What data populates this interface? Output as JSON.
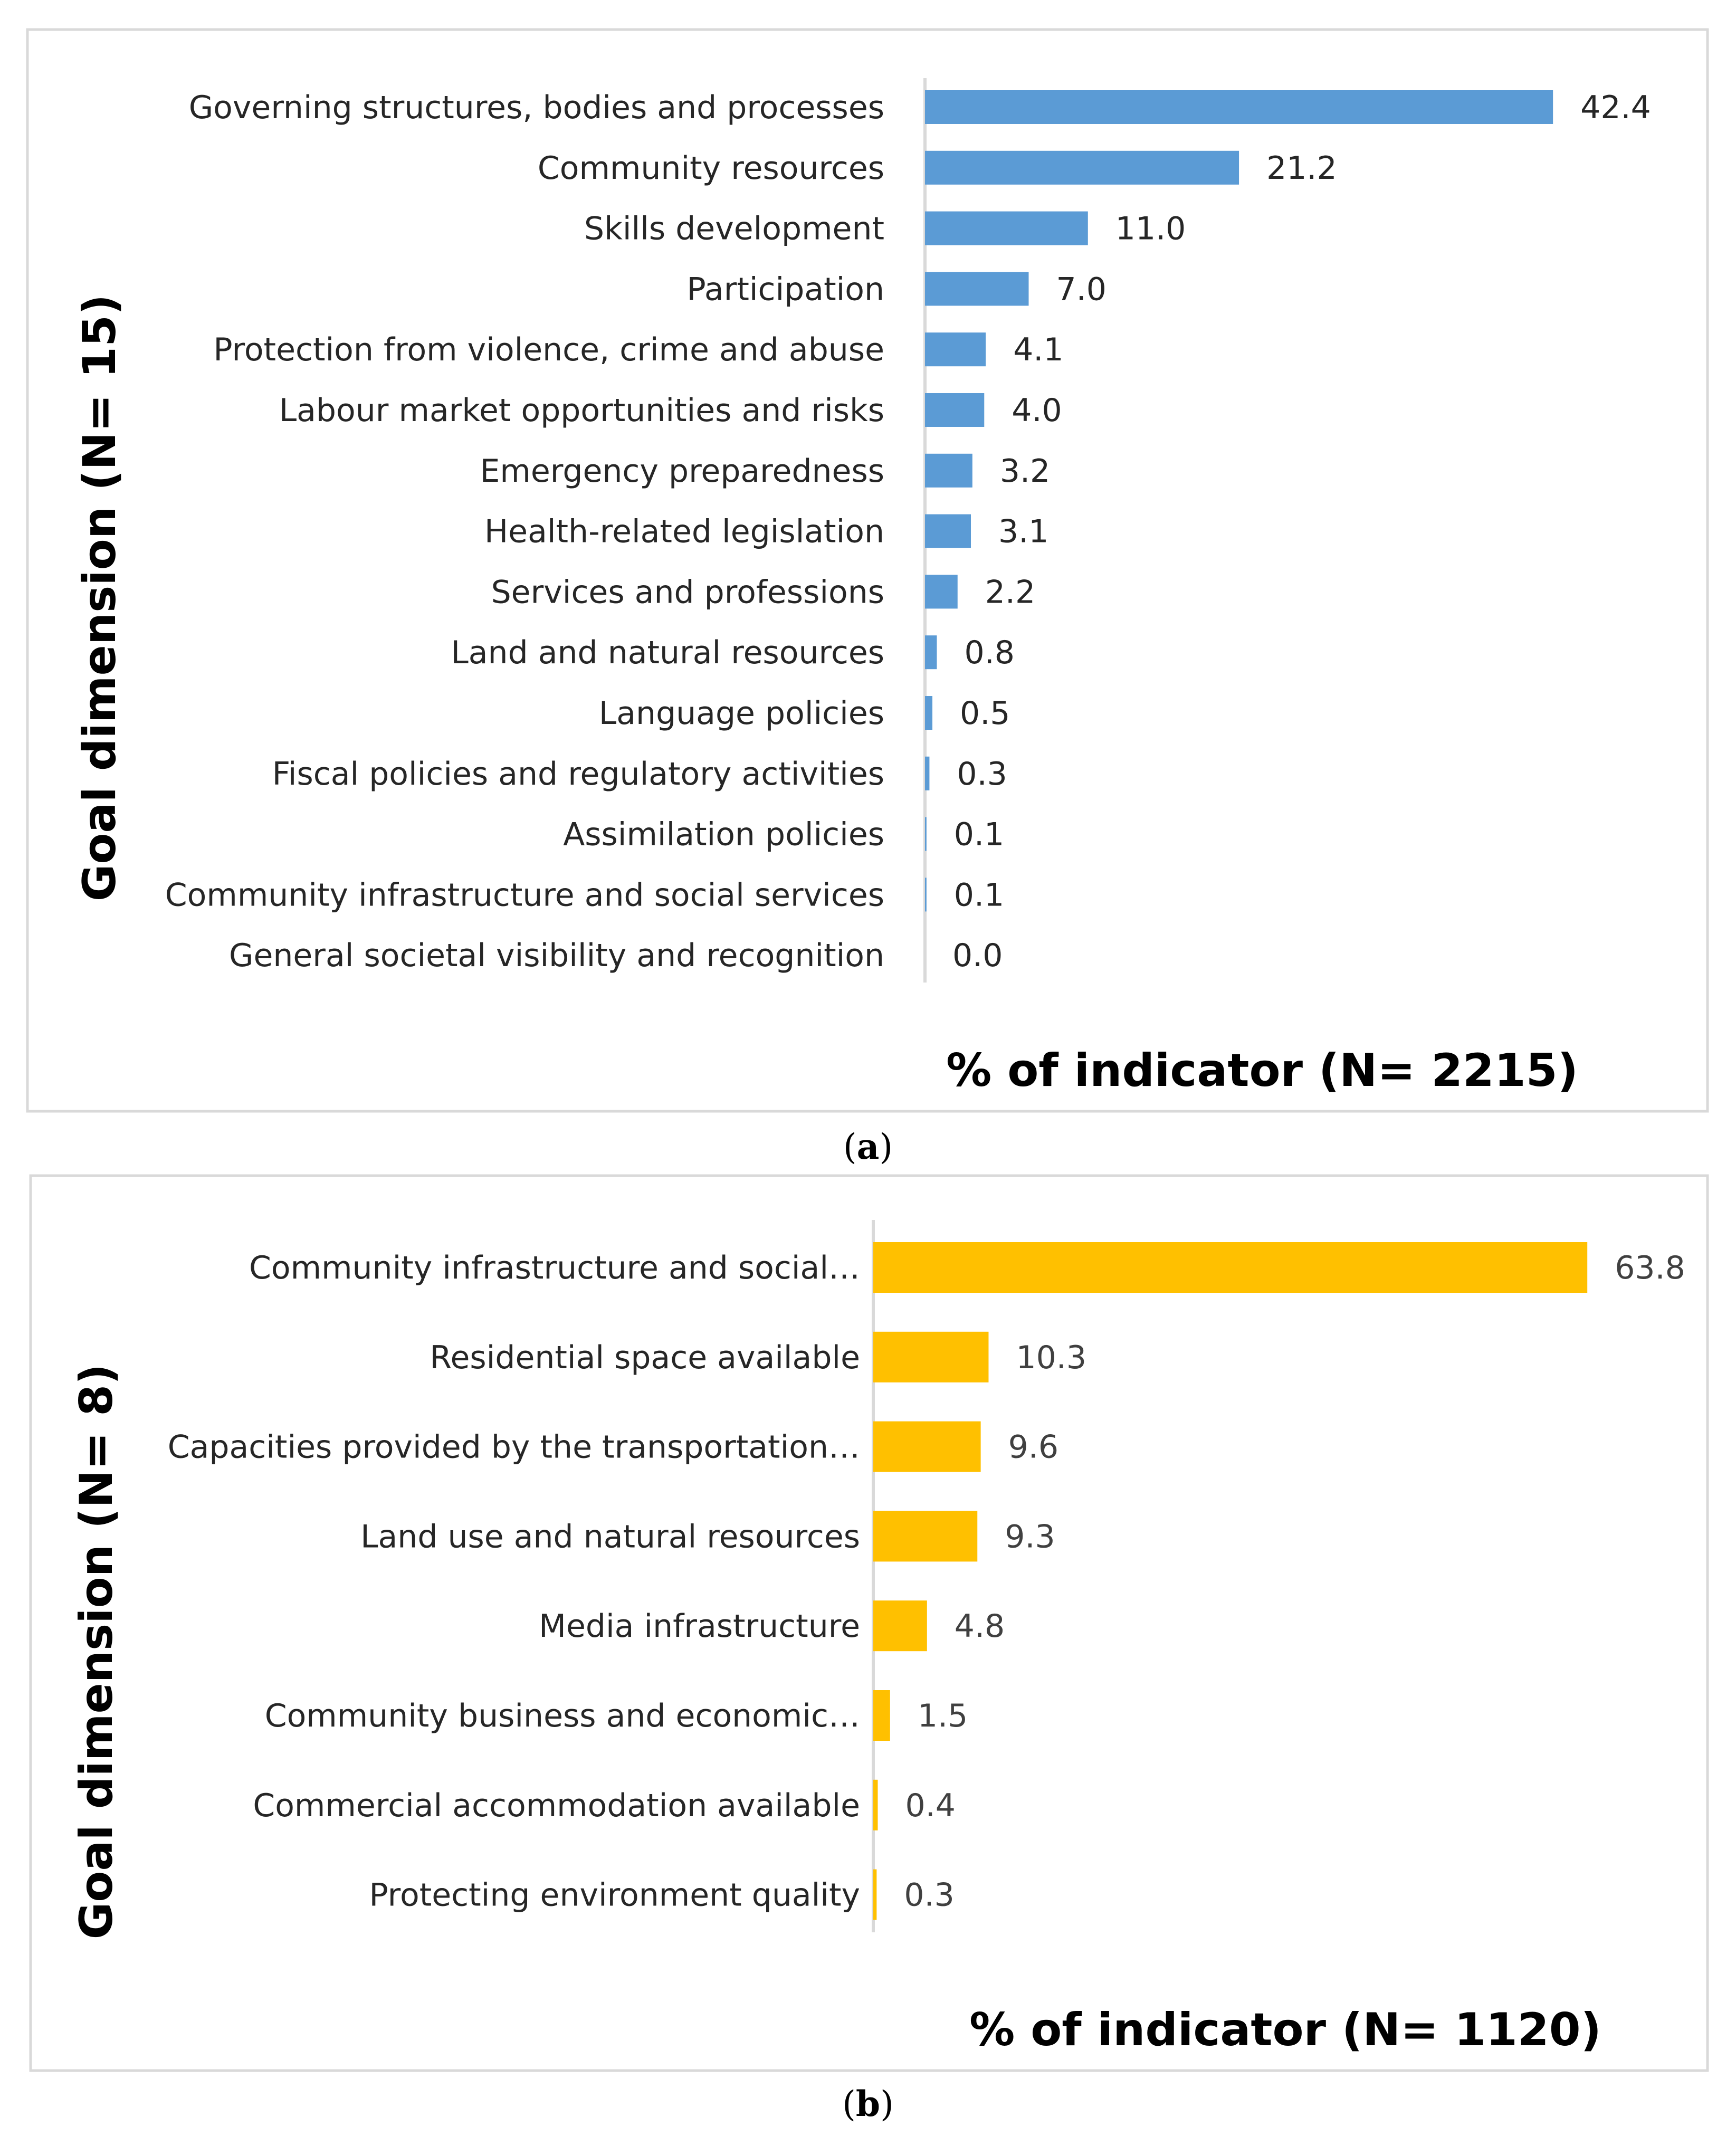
{
  "chart_data": [
    {
      "type": "bar",
      "orientation": "horizontal",
      "panel_label": "a",
      "ylabel": "Goal dimension (N= 15)",
      "xlabel": "% of indicator (N= 2215)",
      "color": "#5B9BD5",
      "grid": false,
      "xlim": [
        0,
        50
      ],
      "categories": [
        "Governing structures, bodies and processes",
        "Community resources",
        "Skills development",
        "Participation",
        "Protection from violence, crime and abuse",
        "Labour market opportunities and risks",
        "Emergency preparedness",
        "Health-related legislation",
        "Services and professions",
        "Land and natural resources",
        "Language policies",
        "Fiscal policies and regulatory activities",
        "Assimilation policies",
        "Community infrastructure and social services",
        "General societal visibility and recognition"
      ],
      "values": [
        42.4,
        21.2,
        11.0,
        7.0,
        4.1,
        4.0,
        3.2,
        3.1,
        2.2,
        0.8,
        0.5,
        0.3,
        0.1,
        0.1,
        0.0
      ],
      "value_labels": [
        "42.4",
        "21.2",
        "11.0",
        "7.0",
        "4.1",
        "4.0",
        "3.2",
        "3.1",
        "2.2",
        "0.8",
        "0.5",
        "0.3",
        "0.1",
        "0.1",
        "0.0"
      ]
    },
    {
      "type": "bar",
      "orientation": "horizontal",
      "panel_label": "b",
      "ylabel": "Goal dimension (N= 8)",
      "xlabel": "% of indicator (N= 1120)",
      "color": "#FFC000",
      "grid": false,
      "xlim": [
        0,
        70
      ],
      "categories": [
        "Community infrastructure and social…",
        "Residential space available",
        "Capacities provided by the transportation…",
        "Land use and natural resources",
        "Media infrastructure",
        "Community business and economic…",
        "Commercial accommodation available",
        "Protecting environment quality"
      ],
      "values": [
        63.8,
        10.3,
        9.6,
        9.3,
        4.8,
        1.5,
        0.4,
        0.3
      ],
      "value_labels": [
        "63.8",
        "10.3",
        "9.6",
        "9.3",
        "4.8",
        "1.5",
        "0.4",
        "0.3"
      ]
    }
  ]
}
